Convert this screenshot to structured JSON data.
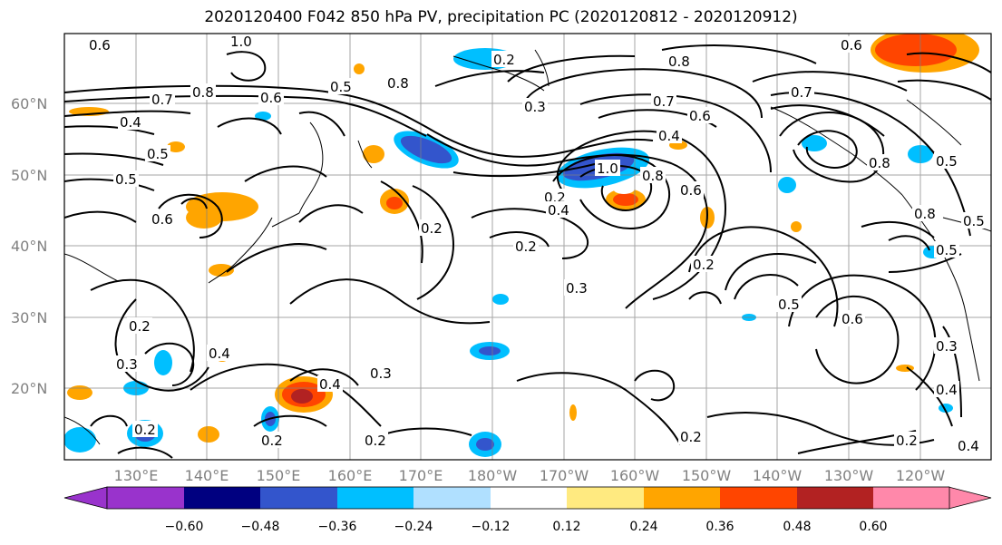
{
  "title": "2020120400 F042 850 hPa PV, precipitation PC (2020120812 - 2020120912)",
  "lat_labels": [
    "60°N",
    "50°N",
    "40°N",
    "30°N",
    "20°N"
  ],
  "lon_labels": [
    "130°E",
    "140°E",
    "150°E",
    "160°E",
    "170°E",
    "180°W",
    "170°W",
    "160°W",
    "150°W",
    "140°W",
    "130°W",
    "120°W"
  ],
  "colorbar": {
    "colors": [
      "#9933cc",
      "#000080",
      "#3355cc",
      "#00bfff",
      "#b0e0ff",
      "#ffffff",
      "#ffea80",
      "#ffa500",
      "#ff4500",
      "#b22222",
      "#ff88aa"
    ],
    "labels": [
      "−0.60",
      "−0.48",
      "−0.36",
      "−0.24",
      "−0.12",
      "0.12",
      "0.24",
      "0.36",
      "0.48",
      "0.60"
    ]
  },
  "contour_labels": [
    "0.6",
    "1.0",
    "0.8",
    "0.7",
    "0.6",
    "0.5",
    "0.8",
    "0.4",
    "0.5",
    "0.5",
    "0.6",
    "0.2",
    "0.3",
    "0.8",
    "0.7",
    "0.6",
    "0.4",
    "0.6",
    "0.7",
    "0.8",
    "0.2",
    "0.4",
    "1.0",
    "0.8",
    "0.6",
    "0.2",
    "0.3",
    "0.2",
    "0.5",
    "0.8",
    "0.5",
    "0.5",
    "0.6",
    "0.2",
    "0.5",
    "0.4",
    "0.3",
    "0.3",
    "0.4",
    "0.2",
    "0.2",
    "0.2",
    "0.2",
    "0.4",
    "0.2",
    "0.2",
    "0.3",
    "0.4"
  ],
  "icons": {
    "map": "pv-contour-map"
  }
}
